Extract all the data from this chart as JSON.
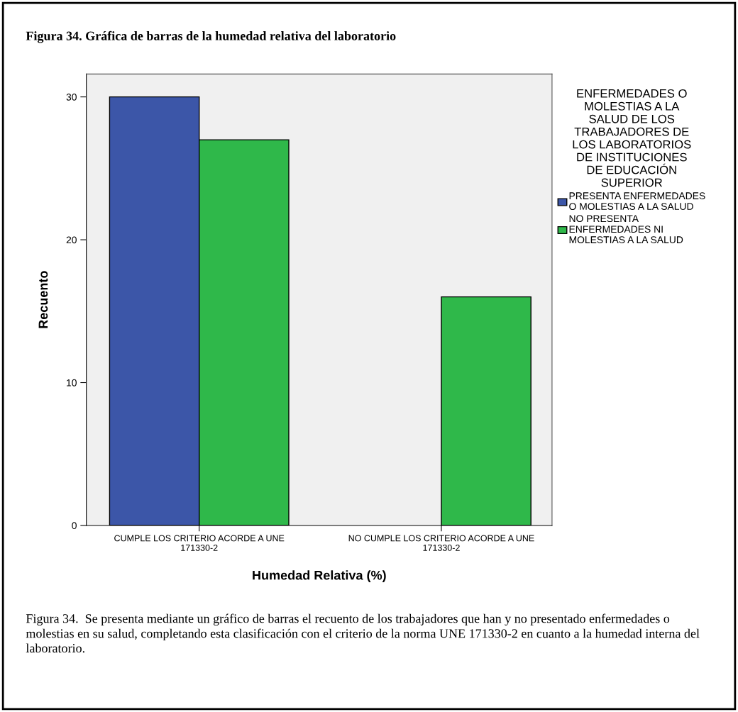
{
  "chart_data": {
    "type": "bar",
    "title": "Figura 34. Gráfica de barras de la humedad relativa del laboratorio",
    "categories": [
      "CUMPLE LOS CRITERIO ACORDE A UNE 171330-2",
      "NO CUMPLE LOS CRITERIO ACORDE A UNE 171330-2"
    ],
    "series": [
      {
        "name": "PRESENTA ENFERMEDADES O MOLESTIAS A LA SALUD",
        "color": "#3c56a8",
        "values": [
          30,
          null
        ]
      },
      {
        "name": "NO PRESENTA ENFERMEDADES NI MOLESTIAS A LA SALUD",
        "color": "#2fb84a",
        "values": [
          27,
          16
        ]
      }
    ],
    "xlabel": "Humedad Relativa (%)",
    "ylabel": "Recuento",
    "legend_title": "ENFERMEDADES O MOLESTIAS A LA SALUD DE LOS TRABAJADORES DE LOS LABORATORIOS DE INSTITUCIONES DE EDUCACIÓN SUPERIOR",
    "legend": "right",
    "ylim": [
      0,
      31.6
    ],
    "yticks": [
      0,
      10,
      20,
      30
    ],
    "grid": false,
    "annotations": [
      "Figura 34.  Se presenta mediante un gráfico de barras el recuento de los trabajadores que han y no presentado enfermedades o molestias en su salud, completando esta clasificación con el criterio de la norma UNE 171330-2 en cuanto a la humedad interna del laboratorio."
    ]
  }
}
